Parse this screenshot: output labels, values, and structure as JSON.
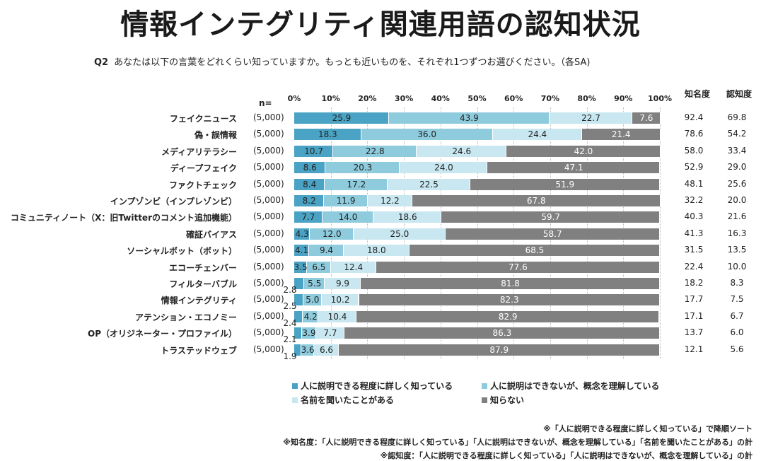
{
  "title": "情報インテグリティ関連用語の認知状況",
  "question": {
    "id": "Q2",
    "text": "あなたは以下の言葉をどれくらい知っていますか。もっとも近いものを、それぞれ1つずつお選びください。（各SA)"
  },
  "n_label": "n=",
  "columns": {
    "awareness": "知名度",
    "recognition": "認知度"
  },
  "chart_data": {
    "type": "bar",
    "orientation": "horizontal",
    "stacked": true,
    "x_ticks": [
      "0%",
      "10%",
      "20%",
      "30%",
      "40%",
      "50%",
      "60%",
      "70%",
      "80%",
      "90%",
      "100%"
    ],
    "xlim": [
      0,
      100
    ],
    "categories": [
      "フェイクニュース",
      "偽・誤情報",
      "メディアリテラシー",
      "ディープフェイク",
      "ファクトチェック",
      "インプゾンビ（インプレゾンビ）",
      "コミュニティノート（X：旧Twitterのコメント追加機能）",
      "確証バイアス",
      "ソーシャルボット（ボット）",
      "エコーチェンバー",
      "フィルターバブル",
      "情報インテグリティ",
      "アテンション・エコノミー",
      "OP（オリジネーター・プロファイル）",
      "トラステッドウェブ"
    ],
    "n": [
      "(5,000)",
      "(5,000)",
      "(5,000)",
      "(5,000)",
      "(5,000)",
      "(5,000)",
      "(5,000)",
      "(5,000)",
      "(5,000)",
      "(5,000)",
      "(5,000)",
      "(5,000)",
      "(5,000)",
      "(5,000)",
      "(5,000)"
    ],
    "series": [
      {
        "name": "人に説明できる程度に詳しく知っている",
        "color": "#4aa3c4",
        "values": [
          25.9,
          18.3,
          10.7,
          8.6,
          8.4,
          8.2,
          7.7,
          4.3,
          4.1,
          3.5,
          2.8,
          2.5,
          2.4,
          2.1,
          1.9
        ]
      },
      {
        "name": "人に説明はできないが、概念を理解している",
        "color": "#8ecbdd",
        "values": [
          43.9,
          36.0,
          22.8,
          20.3,
          17.2,
          11.9,
          14.0,
          12.0,
          9.4,
          6.5,
          5.5,
          5.0,
          4.2,
          3.9,
          3.6
        ]
      },
      {
        "name": "名前を聞いたことがある",
        "color": "#c8e7f0",
        "values": [
          22.7,
          24.4,
          24.6,
          24.0,
          22.5,
          12.2,
          18.6,
          25.0,
          18.0,
          12.4,
          9.9,
          10.2,
          10.4,
          7.7,
          6.6
        ]
      },
      {
        "name": "知らない",
        "color": "#808080",
        "values": [
          7.6,
          21.4,
          42.0,
          47.1,
          51.9,
          67.8,
          59.7,
          58.7,
          68.5,
          77.6,
          81.8,
          82.3,
          82.9,
          86.3,
          87.9
        ]
      }
    ],
    "awareness": [
      92.4,
      78.6,
      58.0,
      52.9,
      48.1,
      32.2,
      40.3,
      41.3,
      31.5,
      22.4,
      18.2,
      17.7,
      17.1,
      13.7,
      12.1
    ],
    "recognition": [
      69.8,
      54.2,
      33.4,
      29.0,
      25.6,
      20.0,
      21.6,
      16.3,
      13.5,
      10.0,
      8.3,
      7.5,
      6.7,
      6.0,
      5.6
    ]
  },
  "notes": [
    "※「人に説明できる程度に詳しく知っている」で降順ソート",
    "※知名度：「人に説明できる程度に詳しく知っている」「人に説明はできないが、概念を理解している」「名前を聞いたことがある」の計",
    "※認知度：「人に説明できる程度に詳しく知っている」「人に説明はできないが、概念を理解している」の計"
  ]
}
